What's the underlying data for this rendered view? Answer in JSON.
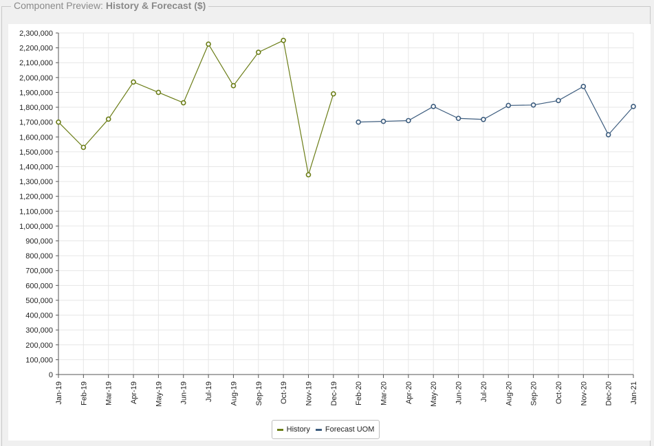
{
  "header": {
    "prefix": "Component Preview:",
    "title": "History & Forecast ($)"
  },
  "chart_data": {
    "type": "line",
    "categories": [
      "Jan-19",
      "Feb-19",
      "Mar-19",
      "Apr-19",
      "May-19",
      "Jun-19",
      "Jul-19",
      "Aug-19",
      "Sep-19",
      "Oct-19",
      "Nov-19",
      "Dec-19",
      "Feb-20",
      "Mar-20",
      "Apr-20",
      "May-20",
      "Jun-20",
      "Jul-20",
      "Aug-20",
      "Sep-20",
      "Oct-20",
      "Nov-20",
      "Dec-20",
      "Jan-21"
    ],
    "series": [
      {
        "name": "History",
        "color": "#6b7d17",
        "values": [
          1700000,
          1530000,
          1720000,
          1970000,
          1900000,
          1830000,
          2225000,
          1945000,
          2170000,
          2250000,
          1345000,
          1890000,
          null,
          null,
          null,
          null,
          null,
          null,
          null,
          null,
          null,
          null,
          null,
          null
        ]
      },
      {
        "name": "Forecast UOM",
        "color": "#3c5c7e",
        "values": [
          null,
          null,
          null,
          null,
          null,
          null,
          null,
          null,
          null,
          null,
          null,
          null,
          1700000,
          1705000,
          1710000,
          1805000,
          1725000,
          1718000,
          1812000,
          1815000,
          1845000,
          1940000,
          1615000,
          1805000
        ]
      }
    ],
    "ylim": [
      0,
      2300000
    ],
    "ytick_step": 100000,
    "grid": true,
    "legend": "bottom-center",
    "xlabel": "",
    "ylabel": ""
  }
}
